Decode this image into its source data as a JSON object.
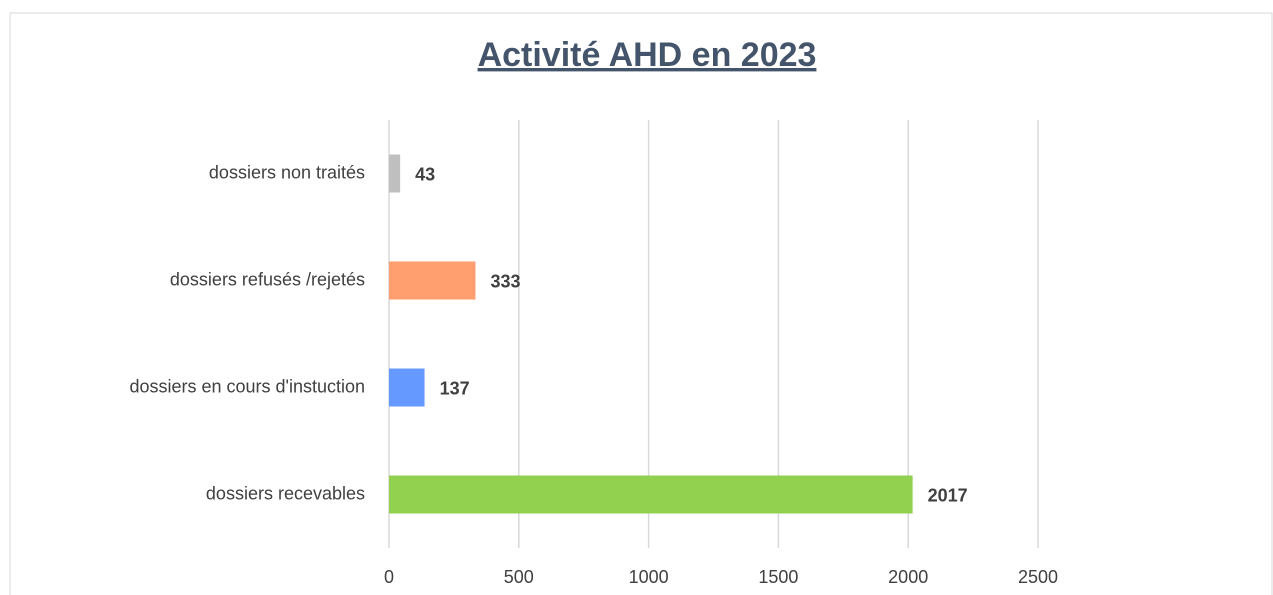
{
  "chart_data": {
    "type": "bar",
    "orientation": "horizontal",
    "title": "Activité AHD en 2023",
    "categories": [
      "dossiers non traités",
      "dossiers refusés /rejetés",
      "dossiers en cours d'instuction",
      "dossiers recevables"
    ],
    "values": [
      43,
      333,
      137,
      2017
    ],
    "colors": [
      "#bfbfbf",
      "#ff9e6e",
      "#6699ff",
      "#92d050"
    ],
    "xlim": [
      0,
      2500
    ],
    "xticks": [
      0,
      500,
      1000,
      1500,
      2000,
      2500
    ],
    "grid": true
  }
}
